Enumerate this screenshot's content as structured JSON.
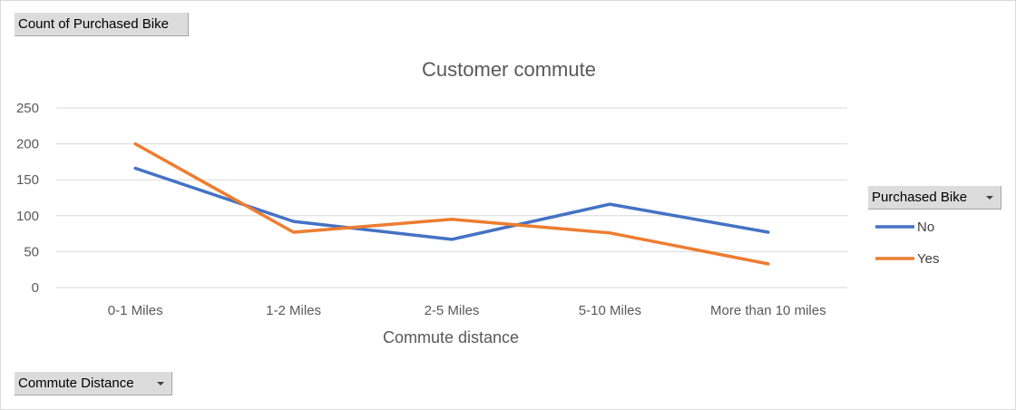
{
  "field_buttons": {
    "value_field": "Count of Purchased Bike",
    "axis_field": "Commute Distance",
    "legend_field": "Purchased Bike"
  },
  "chart_data": {
    "type": "line",
    "title": "Customer commute",
    "xlabel": "Commute distance",
    "ylabel": "",
    "categories": [
      "0-1 Miles",
      "1-2 Miles",
      "2-5 Miles",
      "5-10 Miles",
      "More than 10 miles"
    ],
    "series": [
      {
        "name": "No",
        "color": "#4472c4",
        "values": [
          166,
          92,
          67,
          116,
          77
        ]
      },
      {
        "name": "Yes",
        "color": "#ed7d31",
        "values": [
          200,
          77,
          95,
          76,
          33
        ]
      }
    ],
    "ylim": [
      0,
      250
    ],
    "yticks": [
      0,
      50,
      100,
      150,
      200,
      250
    ],
    "grid": true,
    "legend_position": "right"
  }
}
